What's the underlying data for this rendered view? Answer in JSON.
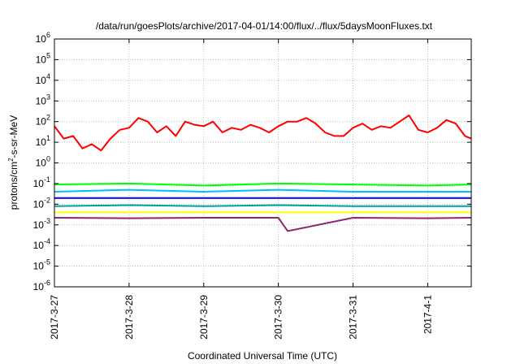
{
  "chart_data": {
    "type": "line",
    "title": "/data/run/goesPlots/archive/2017-04-01/14:00/flux/../flux/5daysMoonFluxes.txt",
    "xlabel": "Coordinated Universal Time (UTC)",
    "ylabel": {
      "prefix": "protons/cm",
      "sup": "2",
      "suffix": "-s-sr-MeV"
    },
    "x_scale": "time",
    "x_range": [
      "2017-03-27 00:00",
      "2017-04-01 14:00"
    ],
    "x_ticks": [
      "2017-3-27",
      "2017-3-28",
      "2017-3-29",
      "2017-3-30",
      "2017-3-31",
      "2017-4-1"
    ],
    "y_scale": "log",
    "ylim": [
      1e-06,
      1000000.0
    ],
    "y_tick_exponents": [
      -6,
      -5,
      -4,
      -3,
      -2,
      -1,
      0,
      1,
      2,
      3,
      4,
      5,
      6
    ],
    "grid": true,
    "legend": "none",
    "series": [
      {
        "color": "#ff0000",
        "x": [
          "2017-03-27 00:00",
          "2017-03-27 03:00",
          "2017-03-27 06:00",
          "2017-03-27 09:00",
          "2017-03-27 12:00",
          "2017-03-27 15:00",
          "2017-03-27 18:00",
          "2017-03-27 21:00",
          "2017-03-28 00:00",
          "2017-03-28 03:00",
          "2017-03-28 06:00",
          "2017-03-28 09:00",
          "2017-03-28 12:00",
          "2017-03-28 15:00",
          "2017-03-28 18:00",
          "2017-03-28 21:00",
          "2017-03-29 00:00",
          "2017-03-29 03:00",
          "2017-03-29 06:00",
          "2017-03-29 09:00",
          "2017-03-29 12:00",
          "2017-03-29 15:00",
          "2017-03-29 18:00",
          "2017-03-29 21:00",
          "2017-03-30 00:00",
          "2017-03-30 03:00",
          "2017-03-30 06:00",
          "2017-03-30 09:00",
          "2017-03-30 12:00",
          "2017-03-30 15:00",
          "2017-03-30 18:00",
          "2017-03-30 21:00",
          "2017-03-31 00:00",
          "2017-03-31 03:00",
          "2017-03-31 06:00",
          "2017-03-31 09:00",
          "2017-03-31 12:00",
          "2017-03-31 15:00",
          "2017-03-31 18:00",
          "2017-03-31 21:00",
          "2017-04-01 00:00",
          "2017-04-01 03:00",
          "2017-04-01 06:00",
          "2017-04-01 09:00",
          "2017-04-01 12:00",
          "2017-04-01 14:00"
        ],
        "y": [
          60,
          15,
          20,
          5,
          8,
          4,
          15,
          40,
          50,
          150,
          100,
          30,
          60,
          20,
          100,
          70,
          60,
          100,
          30,
          50,
          40,
          70,
          50,
          30,
          60,
          100,
          100,
          150,
          80,
          30,
          20,
          20,
          50,
          80,
          40,
          60,
          50,
          100,
          200,
          40,
          30,
          50,
          120,
          80,
          20,
          15
        ]
      },
      {
        "color": "#00ff00",
        "x": [
          "2017-03-27 00:00",
          "2017-03-28 00:00",
          "2017-03-29 00:00",
          "2017-03-30 00:00",
          "2017-03-31 00:00",
          "2017-04-01 00:00",
          "2017-04-01 14:00"
        ],
        "y": [
          0.09,
          0.1,
          0.08,
          0.1,
          0.09,
          0.08,
          0.09
        ]
      },
      {
        "color": "#00bfff",
        "x": [
          "2017-03-27 00:00",
          "2017-03-28 00:00",
          "2017-03-29 00:00",
          "2017-03-30 00:00",
          "2017-03-31 00:00",
          "2017-04-01 00:00",
          "2017-04-01 14:00"
        ],
        "y": [
          0.04,
          0.05,
          0.04,
          0.05,
          0.04,
          0.04,
          0.04
        ]
      },
      {
        "color": "#0000ff",
        "x": [
          "2017-03-27 00:00",
          "2017-03-28 00:00",
          "2017-03-29 00:00",
          "2017-03-30 00:00",
          "2017-03-31 00:00",
          "2017-04-01 00:00",
          "2017-04-01 14:00"
        ],
        "y": [
          0.02,
          0.02,
          0.02,
          0.02,
          0.02,
          0.02,
          0.02
        ]
      },
      {
        "color": "#00a0a0",
        "x": [
          "2017-03-27 00:00",
          "2017-03-28 00:00",
          "2017-03-29 00:00",
          "2017-03-30 00:00",
          "2017-03-31 00:00",
          "2017-04-01 00:00",
          "2017-04-01 14:00"
        ],
        "y": [
          0.008,
          0.009,
          0.008,
          0.009,
          0.008,
          0.008,
          0.008
        ]
      },
      {
        "color": "#ffff00",
        "x": [
          "2017-03-27 00:00",
          "2017-03-28 00:00",
          "2017-03-29 00:00",
          "2017-03-30 00:00",
          "2017-03-31 00:00",
          "2017-04-01 00:00",
          "2017-04-01 14:00"
        ],
        "y": [
          0.004,
          0.004,
          0.004,
          0.004,
          0.004,
          0.004,
          0.004
        ]
      },
      {
        "color": "#8b2a6b",
        "x": [
          "2017-03-27 00:00",
          "2017-03-28 00:00",
          "2017-03-29 00:00",
          "2017-03-30 00:00",
          "2017-03-30 03:00",
          "2017-03-31 00:00",
          "2017-04-01 00:00",
          "2017-04-01 14:00"
        ],
        "y": [
          0.0022,
          0.0021,
          0.0022,
          0.0022,
          0.0005,
          0.0022,
          0.0021,
          0.0022
        ]
      }
    ]
  }
}
